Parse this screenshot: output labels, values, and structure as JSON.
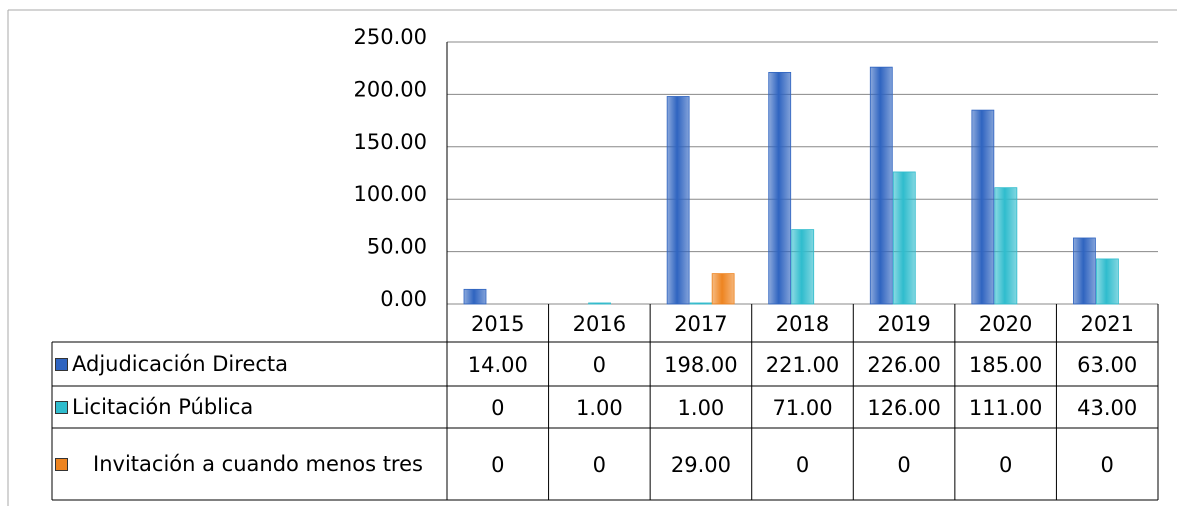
{
  "chart_data": {
    "type": "bar",
    "categories": [
      "2015",
      "2016",
      "2017",
      "2018",
      "2019",
      "2020",
      "2021"
    ],
    "series": [
      {
        "name": "Adjudicación Directa",
        "color": "#2f64c0",
        "values": [
          14,
          0,
          198,
          221,
          226,
          185,
          63
        ],
        "value_labels": [
          "14.00",
          "0",
          "198.00",
          "221.00",
          "226.00",
          "185.00",
          "63.00"
        ]
      },
      {
        "name": "Licitación Pública",
        "color": "#2fbccd",
        "values": [
          0,
          1,
          1,
          71,
          126,
          111,
          43
        ],
        "value_labels": [
          "0",
          "1.00",
          "1.00",
          "71.00",
          "126.00",
          "111.00",
          "43.00"
        ]
      },
      {
        "name": "Invitación a cuando menos tres",
        "color": "#ee8420",
        "values": [
          0,
          0,
          29,
          0,
          0,
          0,
          0
        ],
        "value_labels": [
          "0",
          "0",
          "29.00",
          "0",
          "0",
          "0",
          "0"
        ]
      }
    ],
    "ylim": [
      0,
      250
    ],
    "yticks": [
      {
        "value": 0,
        "label": "0.00"
      },
      {
        "value": 50,
        "label": "50.00"
      },
      {
        "value": 100,
        "label": "100.00"
      },
      {
        "value": 150,
        "label": "150.00"
      },
      {
        "value": 200,
        "label": "200.00"
      },
      {
        "value": 250,
        "label": "250.00"
      }
    ],
    "grid": true
  }
}
